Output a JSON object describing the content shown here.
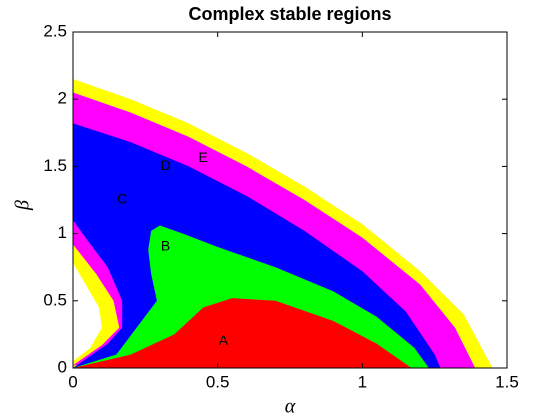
{
  "chart_data": {
    "type": "region",
    "title": "Complex stable regions",
    "x_label": "α",
    "y_label": "β",
    "xlim": [
      0,
      1.5
    ],
    "ylim": [
      0,
      2.5
    ],
    "xticks": [
      0,
      0.5,
      1,
      1.5
    ],
    "yticks": [
      0,
      0.5,
      1,
      1.5,
      2,
      2.5
    ],
    "series": [
      {
        "color": "#ffff00",
        "x": [
          0,
          0,
          0.06,
          0.1,
          0.09,
          0.05,
          0,
          0,
          0.2,
          0.4,
          0.6,
          0.8,
          1.0,
          1.2,
          1.35,
          1.45
        ],
        "y": [
          0,
          0.05,
          0.15,
          0.3,
          0.45,
          0.6,
          0.78,
          2.15,
          2.0,
          1.82,
          1.6,
          1.35,
          1.07,
          0.72,
          0.4,
          0
        ]
      },
      {
        "color": "#ff00ff",
        "x": [
          0,
          0.1,
          0.16,
          0.14,
          0.08,
          0,
          0,
          0.2,
          0.4,
          0.6,
          0.8,
          1.0,
          1.2,
          1.32,
          1.39
        ],
        "y": [
          0.02,
          0.17,
          0.3,
          0.5,
          0.7,
          0.92,
          2.05,
          1.9,
          1.72,
          1.5,
          1.25,
          0.97,
          0.62,
          0.3,
          0
        ]
      },
      {
        "color": "#0000ff",
        "x": [
          0,
          0.12,
          0.17,
          0.17,
          0.12,
          0.05,
          0,
          0,
          0.2,
          0.4,
          0.6,
          0.8,
          1.0,
          1.15,
          1.25,
          1.27
        ],
        "y": [
          0,
          0.18,
          0.3,
          0.5,
          0.75,
          0.95,
          1.1,
          1.82,
          1.68,
          1.5,
          1.28,
          1.02,
          0.72,
          0.42,
          0.1,
          0
        ]
      },
      {
        "color": "#00ff00",
        "x": [
          0,
          0.15,
          0.22,
          0.29,
          0.27,
          0.26,
          0.27,
          0.3,
          0.38,
          0.5,
          0.7,
          0.9,
          1.05,
          1.18,
          1.23
        ],
        "y": [
          0,
          0.1,
          0.3,
          0.5,
          0.7,
          0.88,
          1.02,
          1.06,
          1.0,
          0.9,
          0.75,
          0.57,
          0.38,
          0.15,
          0
        ]
      },
      {
        "color": "#ff0000",
        "x": [
          0,
          0.2,
          0.35,
          0.45,
          0.55,
          0.7,
          0.9,
          1.05,
          1.17
        ],
        "y": [
          0,
          0.1,
          0.25,
          0.45,
          0.52,
          0.5,
          0.35,
          0.18,
          0
        ]
      }
    ],
    "annotations": [
      {
        "text": "A",
        "x": 0.52,
        "y": 0.2
      },
      {
        "text": "B",
        "x": 0.32,
        "y": 0.9
      },
      {
        "text": "C",
        "x": 0.17,
        "y": 1.25
      },
      {
        "text": "D",
        "x": 0.32,
        "y": 1.5
      },
      {
        "text": "E",
        "x": 0.45,
        "y": 1.56
      }
    ]
  }
}
